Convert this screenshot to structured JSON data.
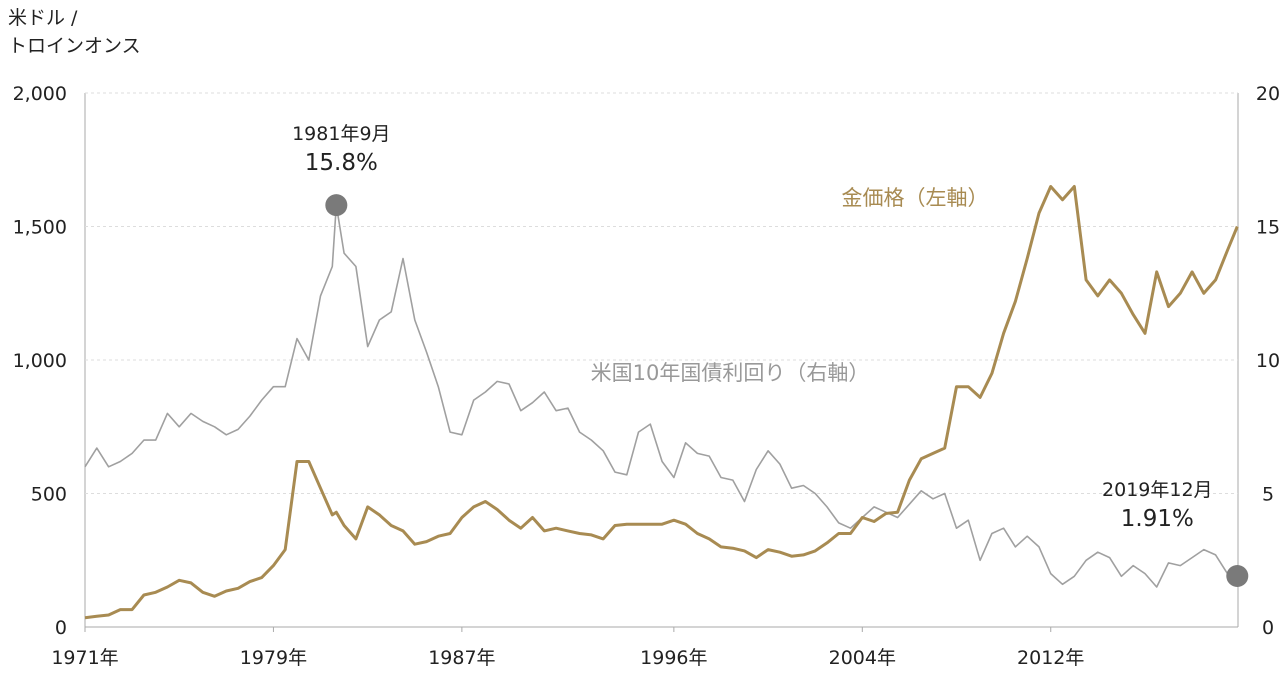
{
  "chart_data": {
    "type": "line",
    "y_label": [
      "米ドル /",
      "トロインオンス"
    ],
    "x": [
      1971.0,
      1971.5,
      1972.0,
      1972.5,
      1973.0,
      1973.5,
      1974.0,
      1974.5,
      1975.0,
      1975.5,
      1976.0,
      1976.5,
      1977.0,
      1977.5,
      1978.0,
      1978.5,
      1979.0,
      1979.5,
      1980.0,
      1980.5,
      1981.0,
      1981.5,
      1981.67,
      1982.0,
      1982.5,
      1983.0,
      1983.5,
      1984.0,
      1984.5,
      1985.0,
      1985.5,
      1986.0,
      1986.5,
      1987.0,
      1987.5,
      1988.0,
      1988.5,
      1989.0,
      1989.5,
      1990.0,
      1990.5,
      1991.0,
      1991.5,
      1992.0,
      1992.5,
      1993.0,
      1993.5,
      1994.0,
      1994.5,
      1995.0,
      1995.5,
      1996.0,
      1996.5,
      1997.0,
      1997.5,
      1998.0,
      1998.5,
      1999.0,
      1999.5,
      2000.0,
      2000.5,
      2001.0,
      2001.5,
      2002.0,
      2002.5,
      2003.0,
      2003.5,
      2004.0,
      2004.5,
      2005.0,
      2005.5,
      2006.0,
      2006.5,
      2007.0,
      2007.5,
      2008.0,
      2008.5,
      2009.0,
      2009.5,
      2010.0,
      2010.5,
      2011.0,
      2011.5,
      2012.0,
      2012.5,
      2013.0,
      2013.5,
      2014.0,
      2014.5,
      2015.0,
      2015.5,
      2016.0,
      2016.5,
      2017.0,
      2017.5,
      2018.0,
      2018.5,
      2019.0,
      2019.5,
      2019.92
    ],
    "series": [
      {
        "name": "金価格（左軸）",
        "color": "#a88b52",
        "axis": "y",
        "values": [
          35,
          40,
          45,
          65,
          65,
          120,
          130,
          150,
          175,
          165,
          130,
          115,
          135,
          145,
          170,
          185,
          230,
          290,
          620,
          620,
          520,
          420,
          430,
          380,
          330,
          450,
          420,
          380,
          360,
          310,
          320,
          340,
          350,
          410,
          450,
          470,
          440,
          400,
          370,
          410,
          360,
          370,
          360,
          350,
          345,
          330,
          380,
          385,
          385,
          385,
          385,
          400,
          385,
          350,
          330,
          300,
          295,
          285,
          260,
          290,
          280,
          265,
          270,
          285,
          315,
          350,
          350,
          410,
          395,
          425,
          430,
          550,
          630,
          650,
          670,
          900,
          900,
          860,
          950,
          1100,
          1220,
          1380,
          1550,
          1650,
          1600,
          1650,
          1300,
          1240,
          1300,
          1250,
          1170,
          1100,
          1330,
          1200,
          1250,
          1330,
          1250,
          1300,
          1410,
          1500
        ]
      },
      {
        "name": "米国10年国債利回り（右軸）",
        "color": "#a0a0a0",
        "axis": "y2",
        "values": [
          6.0,
          6.7,
          6.0,
          6.2,
          6.5,
          7.0,
          7.0,
          8.0,
          7.5,
          8.0,
          7.7,
          7.5,
          7.2,
          7.4,
          7.9,
          8.5,
          9.0,
          9.0,
          10.8,
          10.0,
          12.4,
          13.5,
          15.8,
          14.0,
          13.5,
          10.5,
          11.5,
          11.8,
          13.8,
          11.5,
          10.3,
          9.0,
          7.3,
          7.2,
          8.5,
          8.8,
          9.2,
          9.1,
          8.1,
          8.4,
          8.8,
          8.1,
          8.2,
          7.3,
          7.0,
          6.6,
          5.8,
          5.7,
          7.3,
          7.6,
          6.2,
          5.6,
          6.9,
          6.5,
          6.4,
          5.6,
          5.5,
          4.7,
          5.9,
          6.6,
          6.1,
          5.2,
          5.3,
          5.0,
          4.5,
          3.9,
          3.7,
          4.1,
          4.5,
          4.3,
          4.1,
          4.6,
          5.1,
          4.8,
          5.0,
          3.7,
          4.0,
          2.5,
          3.5,
          3.7,
          3.0,
          3.4,
          3.0,
          2.0,
          1.6,
          1.9,
          2.5,
          2.8,
          2.6,
          1.9,
          2.3,
          2.0,
          1.5,
          2.4,
          2.3,
          2.6,
          2.9,
          2.7,
          2.0,
          1.91
        ]
      }
    ],
    "annotations": [
      {
        "text": "1981年9月",
        "label": "15.8%",
        "value": 15.8
      },
      {
        "text": "2019年12月",
        "label": "1.91%",
        "value": 1.91
      }
    ],
    "xlim": [
      1971,
      2019.95
    ],
    "xticks": [
      {
        "value": 1971,
        "label": "1971年"
      },
      {
        "value": 1979,
        "label": "1979年"
      },
      {
        "value": 1987,
        "label": "1987年"
      },
      {
        "value": 1996,
        "label": "1996年"
      },
      {
        "value": 2004,
        "label": "2004年"
      },
      {
        "value": 2012,
        "label": "2012年"
      }
    ],
    "ylim": [
      0,
      2000
    ],
    "yticks": [
      0,
      500,
      {
        "value": 1000,
        "label": "1,000"
      },
      {
        "value": 1500,
        "label": "1,500"
      },
      {
        "value": 2000,
        "label": "2,000"
      }
    ],
    "y2lim": [
      0,
      20
    ],
    "y2ticks": [
      0,
      5,
      10,
      15,
      20
    ],
    "grid": true
  }
}
